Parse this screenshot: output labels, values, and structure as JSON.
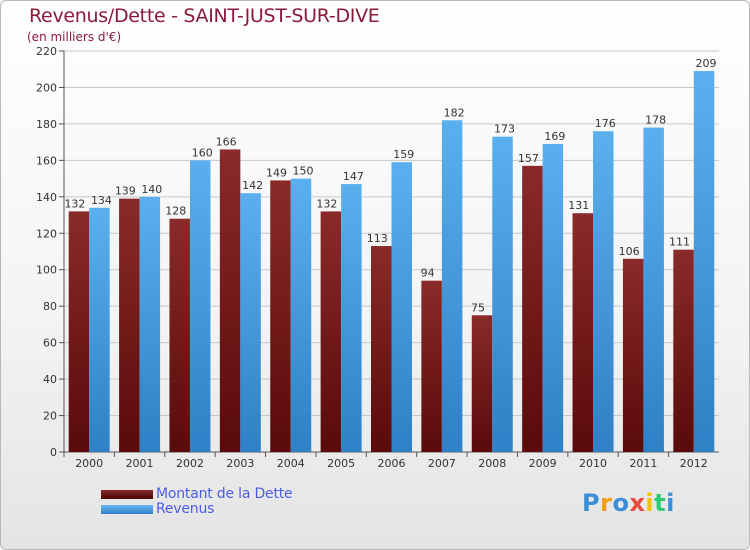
{
  "header": {
    "title": "Revenus/Dette - SAINT-JUST-SUR-DIVE",
    "subtitle": "(en milliers d'€)"
  },
  "colors": {
    "debt": "#7a1a1a",
    "revenue": "#4fa7e6",
    "title": "#8b1a3a",
    "legend_text": "#4a5ee0"
  },
  "chart_data": {
    "type": "bar",
    "categories": [
      "2000",
      "2001",
      "2002",
      "2003",
      "2004",
      "2005",
      "2006",
      "2007",
      "2008",
      "2009",
      "2010",
      "2011",
      "2012"
    ],
    "series": [
      {
        "name": "Montant de la Dette",
        "values": [
          132,
          139,
          128,
          166,
          149,
          132,
          113,
          94,
          75,
          157,
          131,
          106,
          111
        ]
      },
      {
        "name": "Revenus",
        "values": [
          134,
          140,
          160,
          142,
          150,
          147,
          159,
          182,
          173,
          169,
          176,
          178,
          209
        ]
      }
    ],
    "ylim": [
      0,
      220
    ],
    "yticks": [
      0,
      20,
      40,
      60,
      80,
      100,
      120,
      140,
      160,
      180,
      200,
      220
    ],
    "grid": true,
    "legend_position": "bottom-left"
  },
  "legend": {
    "items": [
      {
        "label": "Montant de la Dette"
      },
      {
        "label": "Revenus"
      }
    ]
  },
  "logo": {
    "letters": [
      "P",
      "r",
      "o",
      "x",
      "i",
      "t",
      "i"
    ],
    "colors": [
      "#3a8fd6",
      "#f39c12",
      "#3a8fd6",
      "#e74c3c",
      "#f1c40f",
      "#2ecc71",
      "#3a8fd6"
    ]
  }
}
